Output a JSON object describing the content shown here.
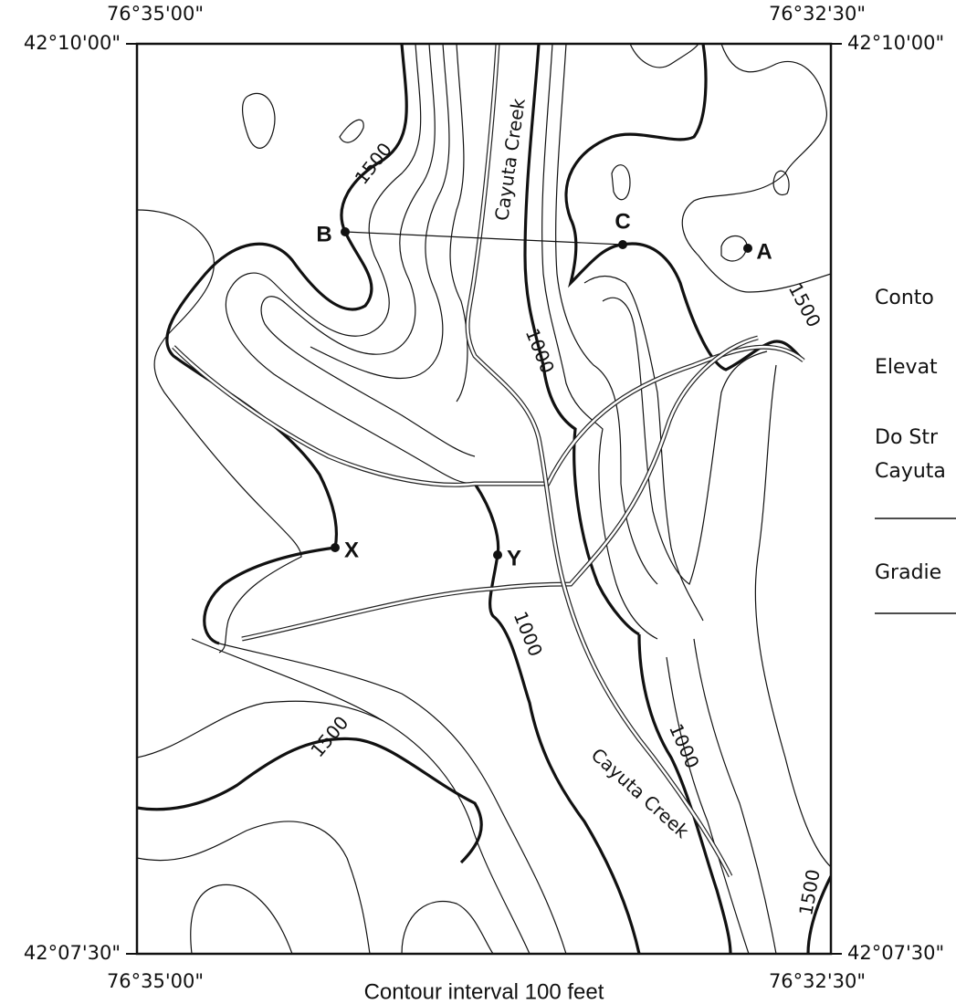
{
  "coordinates": {
    "top_left_lon": "76°35'00\"",
    "top_right_lon": "76°32'30\"",
    "left_top_lat": "42°10'00\"",
    "right_top_lat": "42°10'00\"",
    "left_bottom_lat": "42°07'30\"",
    "right_bottom_lat": "42°07'30\"",
    "bottom_left_lon": "76°35'00\"",
    "bottom_right_lon": "76°32'30\""
  },
  "contour_labels": [
    "1500",
    "1000",
    "1000",
    "1000",
    "1500",
    "1500",
    "1500"
  ],
  "creek_labels": [
    "Cayuta Creek",
    "Cayuta Creek"
  ],
  "points": {
    "A": "A",
    "B": "B",
    "C": "C",
    "X": "X",
    "Y": "Y"
  },
  "caption": "Contour interval 100 feet",
  "questions": [
    "Conto",
    "Elevat",
    "Do Str",
    "Cayuta",
    "Gradie"
  ]
}
